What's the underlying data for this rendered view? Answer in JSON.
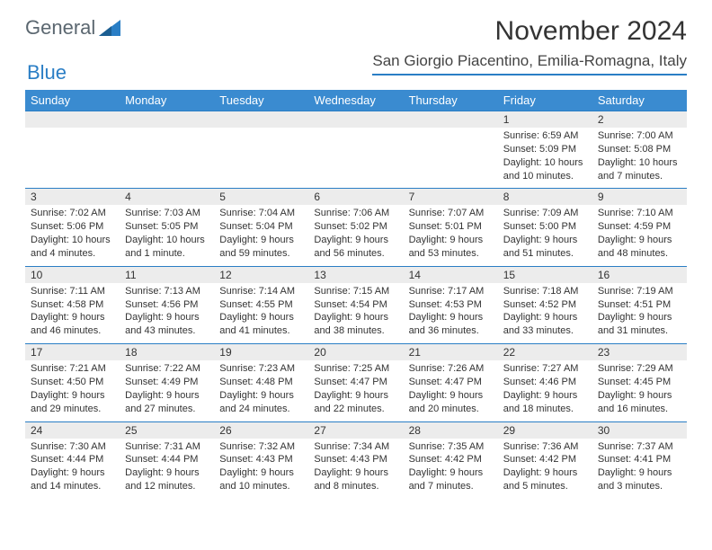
{
  "brand": {
    "part1": "General",
    "part2": "Blue"
  },
  "title": "November 2024",
  "location": "San Giorgio Piacentino, Emilia-Romagna, Italy",
  "colors": {
    "header_bg": "#3a8bd0",
    "rule": "#2a7ec5",
    "daynum_bg": "#ececec",
    "text": "#333333",
    "logo_gray": "#5b6770"
  },
  "font": {
    "family": "Arial",
    "title_size_pt": 22,
    "location_size_pt": 13,
    "header_size_pt": 10,
    "cell_size_pt": 8
  },
  "day_headers": [
    "Sunday",
    "Monday",
    "Tuesday",
    "Wednesday",
    "Thursday",
    "Friday",
    "Saturday"
  ],
  "weeks": [
    [
      null,
      null,
      null,
      null,
      null,
      {
        "n": "1",
        "sr": "Sunrise: 6:59 AM",
        "ss": "Sunset: 5:09 PM",
        "dl": "Daylight: 10 hours and 10 minutes."
      },
      {
        "n": "2",
        "sr": "Sunrise: 7:00 AM",
        "ss": "Sunset: 5:08 PM",
        "dl": "Daylight: 10 hours and 7 minutes."
      }
    ],
    [
      {
        "n": "3",
        "sr": "Sunrise: 7:02 AM",
        "ss": "Sunset: 5:06 PM",
        "dl": "Daylight: 10 hours and 4 minutes."
      },
      {
        "n": "4",
        "sr": "Sunrise: 7:03 AM",
        "ss": "Sunset: 5:05 PM",
        "dl": "Daylight: 10 hours and 1 minute."
      },
      {
        "n": "5",
        "sr": "Sunrise: 7:04 AM",
        "ss": "Sunset: 5:04 PM",
        "dl": "Daylight: 9 hours and 59 minutes."
      },
      {
        "n": "6",
        "sr": "Sunrise: 7:06 AM",
        "ss": "Sunset: 5:02 PM",
        "dl": "Daylight: 9 hours and 56 minutes."
      },
      {
        "n": "7",
        "sr": "Sunrise: 7:07 AM",
        "ss": "Sunset: 5:01 PM",
        "dl": "Daylight: 9 hours and 53 minutes."
      },
      {
        "n": "8",
        "sr": "Sunrise: 7:09 AM",
        "ss": "Sunset: 5:00 PM",
        "dl": "Daylight: 9 hours and 51 minutes."
      },
      {
        "n": "9",
        "sr": "Sunrise: 7:10 AM",
        "ss": "Sunset: 4:59 PM",
        "dl": "Daylight: 9 hours and 48 minutes."
      }
    ],
    [
      {
        "n": "10",
        "sr": "Sunrise: 7:11 AM",
        "ss": "Sunset: 4:58 PM",
        "dl": "Daylight: 9 hours and 46 minutes."
      },
      {
        "n": "11",
        "sr": "Sunrise: 7:13 AM",
        "ss": "Sunset: 4:56 PM",
        "dl": "Daylight: 9 hours and 43 minutes."
      },
      {
        "n": "12",
        "sr": "Sunrise: 7:14 AM",
        "ss": "Sunset: 4:55 PM",
        "dl": "Daylight: 9 hours and 41 minutes."
      },
      {
        "n": "13",
        "sr": "Sunrise: 7:15 AM",
        "ss": "Sunset: 4:54 PM",
        "dl": "Daylight: 9 hours and 38 minutes."
      },
      {
        "n": "14",
        "sr": "Sunrise: 7:17 AM",
        "ss": "Sunset: 4:53 PM",
        "dl": "Daylight: 9 hours and 36 minutes."
      },
      {
        "n": "15",
        "sr": "Sunrise: 7:18 AM",
        "ss": "Sunset: 4:52 PM",
        "dl": "Daylight: 9 hours and 33 minutes."
      },
      {
        "n": "16",
        "sr": "Sunrise: 7:19 AM",
        "ss": "Sunset: 4:51 PM",
        "dl": "Daylight: 9 hours and 31 minutes."
      }
    ],
    [
      {
        "n": "17",
        "sr": "Sunrise: 7:21 AM",
        "ss": "Sunset: 4:50 PM",
        "dl": "Daylight: 9 hours and 29 minutes."
      },
      {
        "n": "18",
        "sr": "Sunrise: 7:22 AM",
        "ss": "Sunset: 4:49 PM",
        "dl": "Daylight: 9 hours and 27 minutes."
      },
      {
        "n": "19",
        "sr": "Sunrise: 7:23 AM",
        "ss": "Sunset: 4:48 PM",
        "dl": "Daylight: 9 hours and 24 minutes."
      },
      {
        "n": "20",
        "sr": "Sunrise: 7:25 AM",
        "ss": "Sunset: 4:47 PM",
        "dl": "Daylight: 9 hours and 22 minutes."
      },
      {
        "n": "21",
        "sr": "Sunrise: 7:26 AM",
        "ss": "Sunset: 4:47 PM",
        "dl": "Daylight: 9 hours and 20 minutes."
      },
      {
        "n": "22",
        "sr": "Sunrise: 7:27 AM",
        "ss": "Sunset: 4:46 PM",
        "dl": "Daylight: 9 hours and 18 minutes."
      },
      {
        "n": "23",
        "sr": "Sunrise: 7:29 AM",
        "ss": "Sunset: 4:45 PM",
        "dl": "Daylight: 9 hours and 16 minutes."
      }
    ],
    [
      {
        "n": "24",
        "sr": "Sunrise: 7:30 AM",
        "ss": "Sunset: 4:44 PM",
        "dl": "Daylight: 9 hours and 14 minutes."
      },
      {
        "n": "25",
        "sr": "Sunrise: 7:31 AM",
        "ss": "Sunset: 4:44 PM",
        "dl": "Daylight: 9 hours and 12 minutes."
      },
      {
        "n": "26",
        "sr": "Sunrise: 7:32 AM",
        "ss": "Sunset: 4:43 PM",
        "dl": "Daylight: 9 hours and 10 minutes."
      },
      {
        "n": "27",
        "sr": "Sunrise: 7:34 AM",
        "ss": "Sunset: 4:43 PM",
        "dl": "Daylight: 9 hours and 8 minutes."
      },
      {
        "n": "28",
        "sr": "Sunrise: 7:35 AM",
        "ss": "Sunset: 4:42 PM",
        "dl": "Daylight: 9 hours and 7 minutes."
      },
      {
        "n": "29",
        "sr": "Sunrise: 7:36 AM",
        "ss": "Sunset: 4:42 PM",
        "dl": "Daylight: 9 hours and 5 minutes."
      },
      {
        "n": "30",
        "sr": "Sunrise: 7:37 AM",
        "ss": "Sunset: 4:41 PM",
        "dl": "Daylight: 9 hours and 3 minutes."
      }
    ]
  ]
}
